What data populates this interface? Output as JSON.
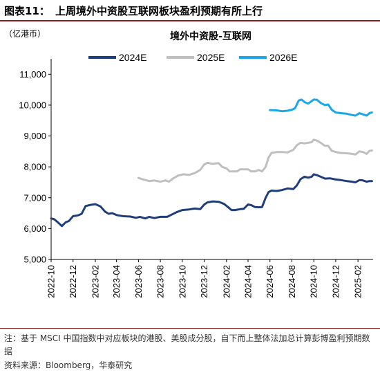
{
  "figure": {
    "label": "图表11：",
    "title": "上周境外中资股互联网板块盈利预期有所上行",
    "note": "注：基于 MSCI 中国指数中对应板块的港股、美股成分股，自下而上整体法加总计算彭博盈利预期数据",
    "source": "资料来源：Bloomberg，华泰研究"
  },
  "colors": {
    "accent_rule": "#8b1a1a",
    "series_2024E": "#1f3d7a",
    "series_2025E": "#bfbfbf",
    "series_2026E": "#1aa7e8"
  },
  "chart_data": {
    "type": "line",
    "title": "境外中资股-互联网",
    "unit_label": "（亿港币）",
    "ylim": [
      5000,
      11500
    ],
    "yticks": [
      5000,
      6000,
      7000,
      8000,
      9000,
      10000,
      11000
    ],
    "ytick_labels": [
      "5,000",
      "6,000",
      "7,000",
      "8,000",
      "9,000",
      "10,000",
      "11,000"
    ],
    "xlim": [
      "2022-10-01",
      "2025-03-15"
    ],
    "xticks": [
      "2022-10",
      "2022-12",
      "2023-02",
      "2023-04",
      "2023-06",
      "2023-08",
      "2023-10",
      "2023-12",
      "2024-02",
      "2024-04",
      "2024-06",
      "2024-08",
      "2024-10",
      "2024-12",
      "2025-02"
    ],
    "grid": false,
    "legend_position": "top",
    "series": [
      {
        "name": "2024E",
        "points": [
          [
            "2022-10-01",
            6330
          ],
          [
            "2022-10-10",
            6300
          ],
          [
            "2022-10-20",
            6200
          ],
          [
            "2022-10-31",
            6080
          ],
          [
            "2022-11-10",
            6200
          ],
          [
            "2022-11-20",
            6250
          ],
          [
            "2022-12-01",
            6400
          ],
          [
            "2022-12-15",
            6430
          ],
          [
            "2022-12-25",
            6480
          ],
          [
            "2023-01-05",
            6730
          ],
          [
            "2023-01-20",
            6770
          ],
          [
            "2023-02-01",
            6790
          ],
          [
            "2023-02-15",
            6720
          ],
          [
            "2023-02-28",
            6550
          ],
          [
            "2023-03-10",
            6480
          ],
          [
            "2023-03-20",
            6500
          ],
          [
            "2023-04-01",
            6440
          ],
          [
            "2023-04-20",
            6400
          ],
          [
            "2023-05-10",
            6390
          ],
          [
            "2023-05-25",
            6350
          ],
          [
            "2023-06-05",
            6380
          ],
          [
            "2023-06-20",
            6330
          ],
          [
            "2023-07-01",
            6380
          ],
          [
            "2023-07-15",
            6340
          ],
          [
            "2023-08-01",
            6380
          ],
          [
            "2023-08-20",
            6380
          ],
          [
            "2023-09-01",
            6450
          ],
          [
            "2023-09-15",
            6530
          ],
          [
            "2023-10-01",
            6600
          ],
          [
            "2023-10-20",
            6620
          ],
          [
            "2023-11-05",
            6650
          ],
          [
            "2023-11-20",
            6630
          ],
          [
            "2023-12-01",
            6780
          ],
          [
            "2023-12-10",
            6850
          ],
          [
            "2023-12-25",
            6880
          ],
          [
            "2024-01-10",
            6870
          ],
          [
            "2024-01-25",
            6800
          ],
          [
            "2024-02-05",
            6700
          ],
          [
            "2024-02-15",
            6600
          ],
          [
            "2024-02-25",
            6600
          ],
          [
            "2024-03-10",
            6630
          ],
          [
            "2024-03-20",
            6640
          ],
          [
            "2024-04-01",
            6780
          ],
          [
            "2024-04-10",
            6760
          ],
          [
            "2024-04-20",
            6700
          ],
          [
            "2024-05-01",
            6690
          ],
          [
            "2024-05-10",
            6700
          ],
          [
            "2024-05-20",
            7000
          ],
          [
            "2024-05-28",
            7180
          ],
          [
            "2024-06-05",
            7230
          ],
          [
            "2024-06-20",
            7220
          ],
          [
            "2024-07-05",
            7250
          ],
          [
            "2024-07-20",
            7300
          ],
          [
            "2024-08-05",
            7280
          ],
          [
            "2024-08-15",
            7400
          ],
          [
            "2024-08-25",
            7600
          ],
          [
            "2024-09-05",
            7680
          ],
          [
            "2024-09-15",
            7650
          ],
          [
            "2024-09-25",
            7680
          ],
          [
            "2024-10-01",
            7760
          ],
          [
            "2024-10-10",
            7730
          ],
          [
            "2024-10-20",
            7680
          ],
          [
            "2024-11-01",
            7620
          ],
          [
            "2024-11-15",
            7630
          ],
          [
            "2024-12-01",
            7590
          ],
          [
            "2024-12-15",
            7570
          ],
          [
            "2025-01-01",
            7540
          ],
          [
            "2025-01-15",
            7520
          ],
          [
            "2025-01-25",
            7500
          ],
          [
            "2025-02-05",
            7570
          ],
          [
            "2025-02-15",
            7560
          ],
          [
            "2025-02-25",
            7520
          ],
          [
            "2025-03-05",
            7540
          ],
          [
            "2025-03-12",
            7540
          ]
        ]
      },
      {
        "name": "2025E",
        "points": [
          [
            "2023-06-01",
            7640
          ],
          [
            "2023-06-15",
            7590
          ],
          [
            "2023-07-01",
            7540
          ],
          [
            "2023-07-15",
            7560
          ],
          [
            "2023-08-01",
            7520
          ],
          [
            "2023-08-15",
            7560
          ],
          [
            "2023-08-25",
            7520
          ],
          [
            "2023-09-05",
            7620
          ],
          [
            "2023-09-20",
            7720
          ],
          [
            "2023-10-05",
            7760
          ],
          [
            "2023-10-20",
            7740
          ],
          [
            "2023-11-05",
            7800
          ],
          [
            "2023-11-20",
            7900
          ],
          [
            "2023-12-01",
            8080
          ],
          [
            "2023-12-10",
            8130
          ],
          [
            "2023-12-25",
            8100
          ],
          [
            "2024-01-10",
            8120
          ],
          [
            "2024-01-20",
            8000
          ],
          [
            "2024-02-01",
            7950
          ],
          [
            "2024-02-10",
            7850
          ],
          [
            "2024-02-20",
            7850
          ],
          [
            "2024-03-01",
            7850
          ],
          [
            "2024-03-10",
            7920
          ],
          [
            "2024-03-20",
            7920
          ],
          [
            "2024-04-01",
            7920
          ],
          [
            "2024-04-10",
            7850
          ],
          [
            "2024-04-20",
            7850
          ],
          [
            "2024-05-01",
            7900
          ],
          [
            "2024-05-10",
            7850
          ],
          [
            "2024-05-20",
            8000
          ],
          [
            "2024-05-28",
            8300
          ],
          [
            "2024-06-05",
            8450
          ],
          [
            "2024-06-20",
            8480
          ],
          [
            "2024-07-05",
            8480
          ],
          [
            "2024-07-20",
            8470
          ],
          [
            "2024-08-05",
            8550
          ],
          [
            "2024-08-15",
            8700
          ],
          [
            "2024-08-25",
            8780
          ],
          [
            "2024-09-05",
            8760
          ],
          [
            "2024-09-15",
            8780
          ],
          [
            "2024-09-25",
            8800
          ],
          [
            "2024-10-01",
            8880
          ],
          [
            "2024-10-10",
            8850
          ],
          [
            "2024-10-20",
            8780
          ],
          [
            "2024-11-01",
            8680
          ],
          [
            "2024-11-10",
            8680
          ],
          [
            "2024-11-20",
            8520
          ],
          [
            "2024-12-01",
            8480
          ],
          [
            "2024-12-15",
            8450
          ],
          [
            "2025-01-01",
            8440
          ],
          [
            "2025-01-15",
            8420
          ],
          [
            "2025-01-25",
            8400
          ],
          [
            "2025-02-05",
            8500
          ],
          [
            "2025-02-15",
            8480
          ],
          [
            "2025-02-25",
            8420
          ],
          [
            "2025-03-05",
            8520
          ],
          [
            "2025-03-12",
            8530
          ]
        ]
      },
      {
        "name": "2026E",
        "points": [
          [
            "2024-06-01",
            9840
          ],
          [
            "2024-06-20",
            9830
          ],
          [
            "2024-07-05",
            9800
          ],
          [
            "2024-07-20",
            9820
          ],
          [
            "2024-08-01",
            9850
          ],
          [
            "2024-08-10",
            9900
          ],
          [
            "2024-08-20",
            10150
          ],
          [
            "2024-08-28",
            10180
          ],
          [
            "2024-09-05",
            10100
          ],
          [
            "2024-09-15",
            10050
          ],
          [
            "2024-09-25",
            10130
          ],
          [
            "2024-10-01",
            10180
          ],
          [
            "2024-10-10",
            10170
          ],
          [
            "2024-10-20",
            10070
          ],
          [
            "2024-11-01",
            10000
          ],
          [
            "2024-11-10",
            10020
          ],
          [
            "2024-11-20",
            9850
          ],
          [
            "2024-12-01",
            9760
          ],
          [
            "2024-12-15",
            9740
          ],
          [
            "2025-01-01",
            9720
          ],
          [
            "2025-01-15",
            9680
          ],
          [
            "2025-01-25",
            9660
          ],
          [
            "2025-02-05",
            9740
          ],
          [
            "2025-02-15",
            9700
          ],
          [
            "2025-02-25",
            9660
          ],
          [
            "2025-03-05",
            9740
          ],
          [
            "2025-03-12",
            9760
          ]
        ]
      }
    ]
  }
}
